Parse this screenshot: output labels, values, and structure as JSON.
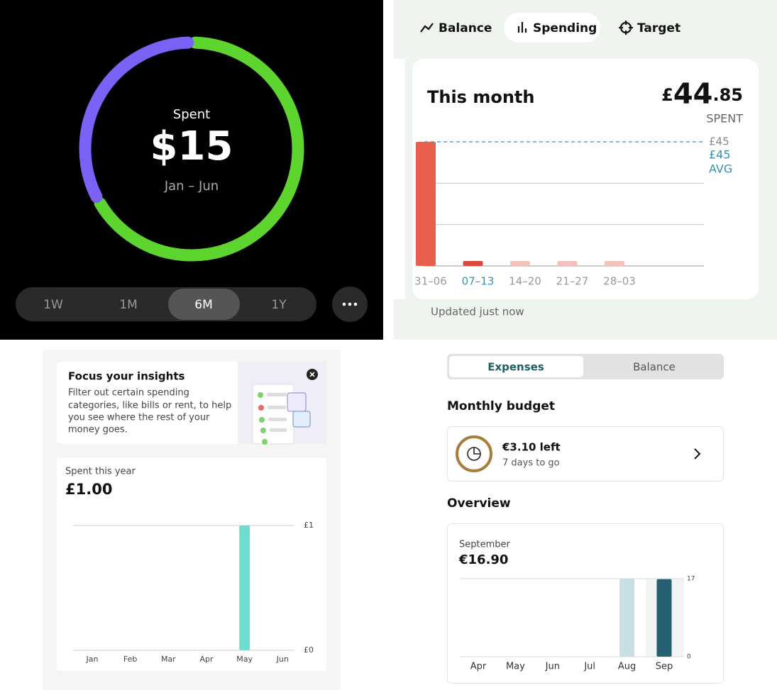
{
  "ui": {
    "ranges": [
      "1W",
      "1M",
      "6M",
      "1Y"
    ],
    "selected_range": 2,
    "tabs": [
      "Balance",
      "Spending",
      "Target"
    ],
    "selected_tab": 1,
    "updated": "Updated just now",
    "insight": {
      "title": "Focus your insights",
      "lines": [
        "Filter out certain spending",
        "categories, like bills or rent, to help",
        "you see where the rest of your",
        "money goes."
      ]
    },
    "segments": [
      "Expenses",
      "Balance"
    ],
    "selected_segment": 0,
    "budget": {
      "heading": "Monthly budget",
      "left": "€3.10 left",
      "days": "7 days to go"
    },
    "overview": "Overview"
  },
  "chart_data": [
    {
      "type": "pie",
      "categories": [
        null,
        null
      ],
      "values": [
        67,
        33
      ],
      "colors": [
        "#5ed42f",
        "#7b61f5"
      ],
      "label": "Spent",
      "total": "$15",
      "period": "Jan – Jun"
    },
    {
      "type": "bar",
      "title": "This month",
      "amount": {
        "currency": "£",
        "whole": "44",
        "fraction": ".85"
      },
      "amount_caption": "SPENT",
      "categories": [
        "31–06",
        "07–13",
        "14–20",
        "21–27",
        "28–03"
      ],
      "values": [
        45,
        1.8,
        1.8,
        1.8,
        1.8
      ],
      "colors": [
        "#e8604d",
        "#d84a3c",
        "#f2c3bd",
        "#f2c3bd",
        "#f2c3bd"
      ],
      "selected": 1,
      "ylim": [
        0,
        45
      ],
      "yticks": [
        {
          "value": 45,
          "label": "£45"
        }
      ],
      "grid_lines": [
        15,
        30
      ],
      "avg": {
        "value": 45,
        "label": "£45",
        "text": "AVG"
      }
    },
    {
      "type": "bar",
      "title": "Spent this year",
      "amount": "£1.00",
      "categories": [
        "Jan",
        "Feb",
        "Mar",
        "Apr",
        "May",
        "Jun"
      ],
      "values": [
        0,
        0,
        0,
        0,
        1,
        0
      ],
      "color": "#6fdccf",
      "ylim": [
        0,
        1
      ],
      "yticks": [
        {
          "value": 0,
          "label": "£0"
        },
        {
          "value": 1,
          "label": "£1"
        }
      ],
      "grid": true
    },
    {
      "type": "bar",
      "title": "September",
      "amount": "€16.90",
      "categories": [
        "Apr",
        "May",
        "Jun",
        "Jul",
        "Aug",
        "Sep"
      ],
      "values": [
        0,
        0,
        0,
        0,
        17,
        16.9
      ],
      "colors": [
        "#c9dde4",
        "#c9dde4",
        "#c9dde4",
        "#c9dde4",
        "#c9dde4",
        "#245f73"
      ],
      "ylim": [
        0,
        17
      ],
      "yticks": [
        0,
        17
      ],
      "grid": true
    }
  ]
}
